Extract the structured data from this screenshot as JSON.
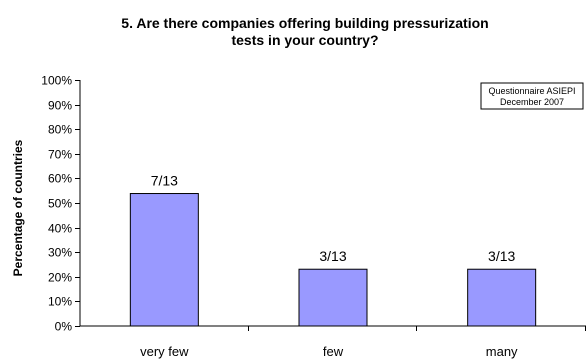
{
  "chart_data": {
    "type": "bar",
    "title_lines": [
      "5. Are there companies offering building pressurization",
      "tests in your country?"
    ],
    "categories": [
      "very few",
      "few",
      "many"
    ],
    "values": [
      53.85,
      23.08,
      23.08
    ],
    "data_labels": [
      "7/13",
      "3/13",
      "3/13"
    ],
    "ylabel": "Percentage of countries",
    "xlabel": "",
    "ylim": [
      0,
      100
    ],
    "ytick_labels": [
      "0%",
      "10%",
      "20%",
      "30%",
      "40%",
      "50%",
      "60%",
      "70%",
      "80%",
      "90%",
      "100%"
    ],
    "grid": false,
    "legend": null,
    "annotation_lines": [
      "Questionnaire ASIEPI",
      "December 2007"
    ],
    "colors": {
      "bar_fill": "#9999ff",
      "bar_stroke": "#000000",
      "axis": "#000000"
    }
  }
}
